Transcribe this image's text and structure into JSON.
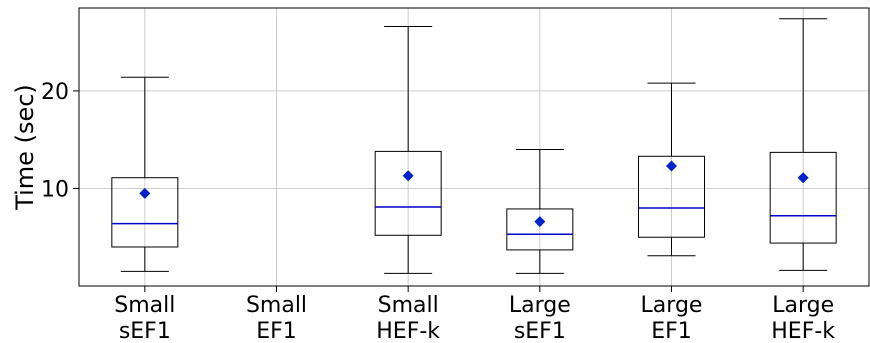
{
  "chart_data": {
    "type": "box",
    "title": "",
    "xlabel": "",
    "ylabel": "Time (sec)",
    "ylim": [
      0,
      28.5
    ],
    "yticks": [
      10,
      20
    ],
    "grid": true,
    "categories": [
      {
        "line1": "Small",
        "line2": "sEF1"
      },
      {
        "line1": "Small",
        "line2": "EF1"
      },
      {
        "line1": "Small",
        "line2": "HEF-k"
      },
      {
        "line1": "Large",
        "line2": "sEF1"
      },
      {
        "line1": "Large",
        "line2": "EF1"
      },
      {
        "line1": "Large",
        "line2": "HEF-k"
      }
    ],
    "boxes": [
      {
        "whisker_low": 1.5,
        "q1": 4.0,
        "median": 6.4,
        "q3": 11.1,
        "whisker_high": 21.4,
        "mean": 9.5
      },
      null,
      {
        "whisker_low": 1.3,
        "q1": 5.2,
        "median": 8.1,
        "q3": 13.8,
        "whisker_high": 26.6,
        "mean": 11.3
      },
      {
        "whisker_low": 1.3,
        "q1": 3.7,
        "median": 5.3,
        "q3": 7.9,
        "whisker_high": 14.0,
        "mean": 6.6
      },
      {
        "whisker_low": 3.1,
        "q1": 5.0,
        "median": 8.0,
        "q3": 13.3,
        "whisker_high": 20.8,
        "mean": 12.3
      },
      {
        "whisker_low": 1.6,
        "q1": 4.4,
        "median": 7.2,
        "q3": 13.7,
        "whisker_high": 27.4,
        "mean": 11.1
      }
    ],
    "colors": {
      "box": "#000000",
      "median": "#0000cc",
      "mean": "#0022cc",
      "grid": "#cccccc"
    }
  }
}
